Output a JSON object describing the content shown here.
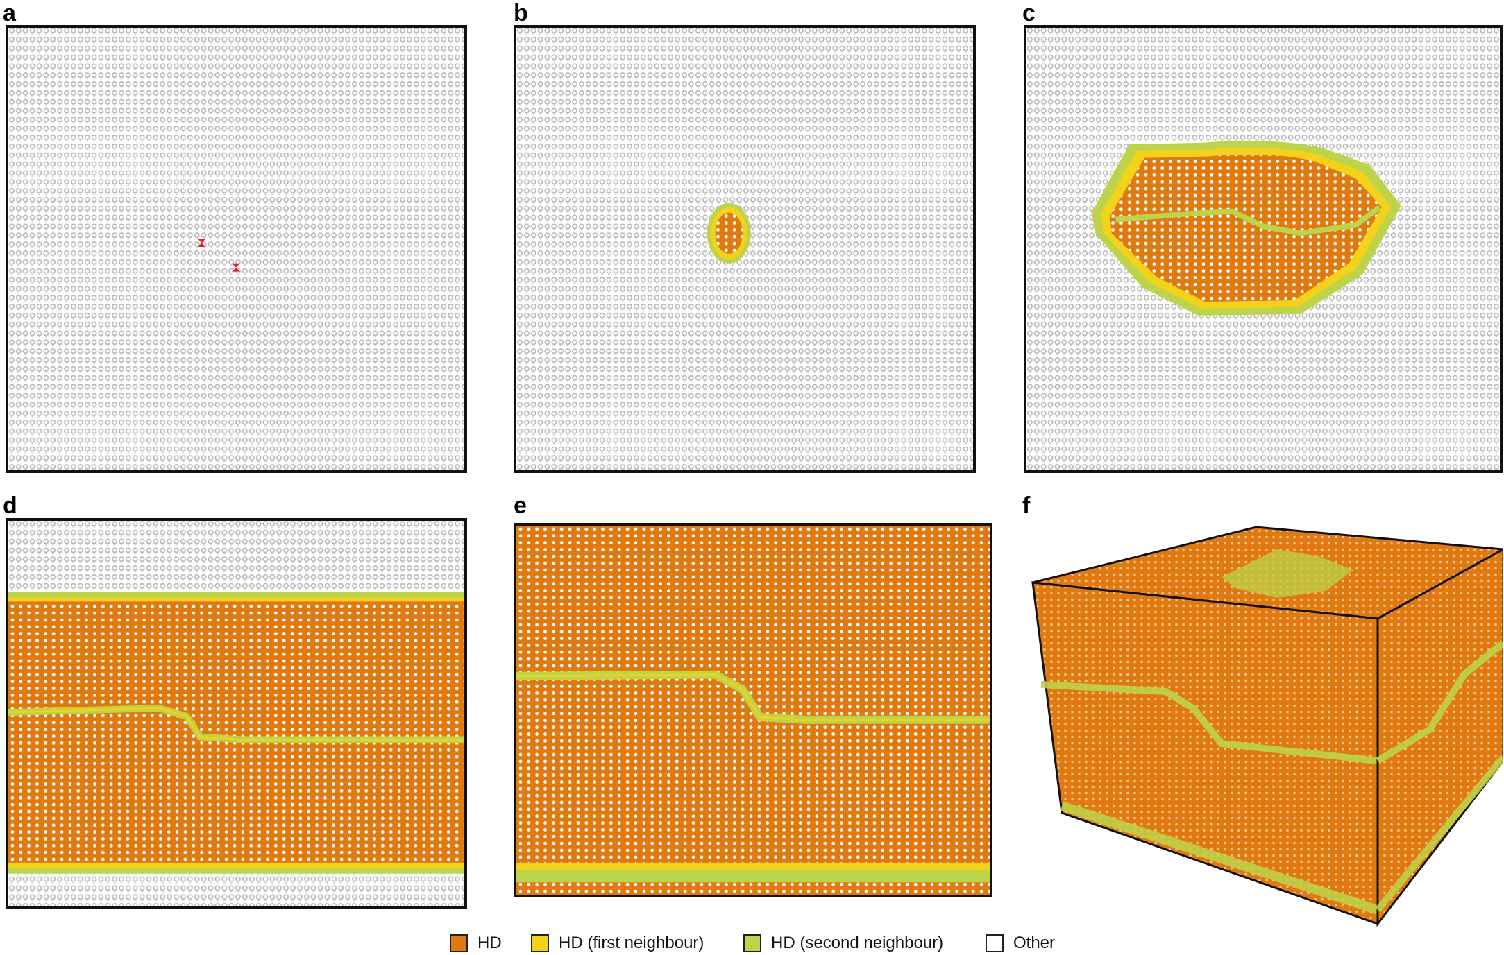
{
  "figure": {
    "panels": [
      {
        "label": "a"
      },
      {
        "label": "b"
      },
      {
        "label": "c"
      },
      {
        "label": "d"
      },
      {
        "label": "e"
      },
      {
        "label": "f"
      }
    ],
    "legend": [
      {
        "label": "HD",
        "color": "#e07a10"
      },
      {
        "label": "HD (first neighbour)",
        "color": "#f2d21b"
      },
      {
        "label": "HD (second neighbour)",
        "color": "#bcd34a"
      },
      {
        "label": "Other",
        "color": "#ffffff"
      }
    ],
    "colors": {
      "other_atoms": "#c9c9c9",
      "defect_atoms": "#e8202a",
      "hd": "#e07a10",
      "hd_first_neighbour": "#f2d21b",
      "hd_second_neighbour": "#bcd34a",
      "frame": "#111111"
    }
  }
}
